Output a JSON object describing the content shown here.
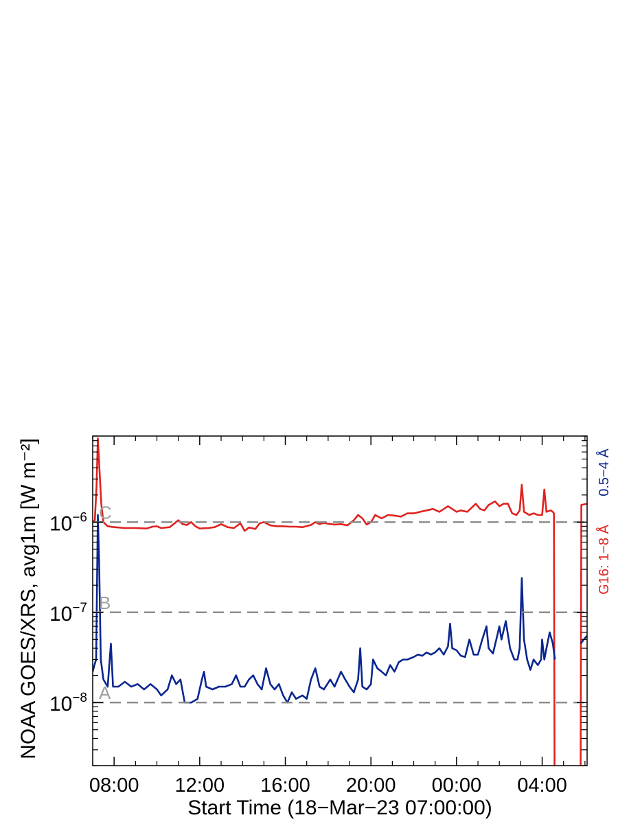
{
  "chart_data": {
    "type": "line",
    "yscale": "log",
    "xlabel": "Start Time (18−Mar−23 07:00:00)",
    "ylabel": "NOAA GOES/XRS, avg1m [W m⁻²]",
    "x_unit": "hours since start time",
    "xlim": [
      0,
      23.1
    ],
    "ylim": [
      2e-09,
      9e-06
    ],
    "x_ticks": [
      {
        "x": 1,
        "label": "08:00"
      },
      {
        "x": 5,
        "label": "12:00"
      },
      {
        "x": 9,
        "label": "16:00"
      },
      {
        "x": 13,
        "label": "20:00"
      },
      {
        "x": 17,
        "label": "00:00"
      },
      {
        "x": 21,
        "label": "04:00"
      }
    ],
    "y_ticks": [
      {
        "y": 1e-08,
        "base": "10",
        "exp": "−8"
      },
      {
        "y": 1e-07,
        "base": "10",
        "exp": "−7"
      },
      {
        "y": 1e-06,
        "base": "10",
        "exp": "−6"
      }
    ],
    "flare_levels": [
      {
        "label": "A",
        "y": 1e-08
      },
      {
        "label": "B",
        "y": 1e-07
      },
      {
        "label": "C",
        "y": 1e-06
      }
    ],
    "legend": [
      {
        "label": "0.5−4 Å",
        "color": "#0a2690"
      },
      {
        "label": "G16: 1−8 Å",
        "color": "#e0221f"
      }
    ],
    "series": [
      {
        "color": "#e0221f",
        "points": [
          [
            0.0,
            1e-06
          ],
          [
            0.1,
            1.05e-06
          ],
          [
            0.18,
            2.5e-06
          ],
          [
            0.24,
            8.5e-06
          ],
          [
            0.3,
            4.5e-06
          ],
          [
            0.4,
            1.6e-06
          ],
          [
            0.5,
            1e-06
          ],
          [
            0.7,
            9e-07
          ],
          [
            1.0,
            8.8e-07
          ],
          [
            1.5,
            8.6e-07
          ],
          [
            2.0,
            8.6e-07
          ],
          [
            2.5,
            8.5e-07
          ],
          [
            2.8,
            8.9e-07
          ],
          [
            3.0,
            9e-07
          ],
          [
            3.2,
            8.6e-07
          ],
          [
            3.6,
            8.8e-07
          ],
          [
            3.8,
            9.6e-07
          ],
          [
            4.0,
            1.05e-06
          ],
          [
            4.2,
            9.5e-07
          ],
          [
            4.4,
            9.3e-07
          ],
          [
            4.6,
            1e-06
          ],
          [
            4.8,
            9e-07
          ],
          [
            5.0,
            8.5e-07
          ],
          [
            5.4,
            8.6e-07
          ],
          [
            5.7,
            8.8e-07
          ],
          [
            6.0,
            9.5e-07
          ],
          [
            6.3,
            8.8e-07
          ],
          [
            6.6,
            8.6e-07
          ],
          [
            6.9,
            9.7e-07
          ],
          [
            7.1,
            8e-07
          ],
          [
            7.3,
            8.7e-07
          ],
          [
            7.6,
            8.4e-07
          ],
          [
            7.8,
            9.7e-07
          ],
          [
            8.0,
            1e-06
          ],
          [
            8.3,
            9.2e-07
          ],
          [
            8.6,
            9e-07
          ],
          [
            8.9,
            9e-07
          ],
          [
            9.2,
            8.9e-07
          ],
          [
            9.5,
            8.9e-07
          ],
          [
            9.8,
            8.8e-07
          ],
          [
            10.2,
            9.3e-07
          ],
          [
            10.4,
            1e-06
          ],
          [
            10.6,
            9.5e-07
          ],
          [
            10.8,
            9.8e-07
          ],
          [
            11.0,
            9.6e-07
          ],
          [
            11.3,
            9.4e-07
          ],
          [
            11.6,
            9.5e-07
          ],
          [
            11.9,
            9.2e-07
          ],
          [
            12.2,
            1.05e-06
          ],
          [
            12.4,
            1.2e-06
          ],
          [
            12.6,
            1.1e-06
          ],
          [
            12.8,
            9.4e-07
          ],
          [
            13.0,
            1e-06
          ],
          [
            13.2,
            1.2e-06
          ],
          [
            13.5,
            1.1e-06
          ],
          [
            13.8,
            1.2e-06
          ],
          [
            14.1,
            1.18e-06
          ],
          [
            14.4,
            1.15e-06
          ],
          [
            14.7,
            1.25e-06
          ],
          [
            15.0,
            1.25e-06
          ],
          [
            15.3,
            1.3e-06
          ],
          [
            15.6,
            1.35e-06
          ],
          [
            15.9,
            1.4e-06
          ],
          [
            16.2,
            1.3e-06
          ],
          [
            16.6,
            1.5e-06
          ],
          [
            16.8,
            1.4e-06
          ],
          [
            17.0,
            1.3e-06
          ],
          [
            17.2,
            1.35e-06
          ],
          [
            17.5,
            1.3e-06
          ],
          [
            17.9,
            1.6e-06
          ],
          [
            18.1,
            1.4e-06
          ],
          [
            18.3,
            1.35e-06
          ],
          [
            18.5,
            1.55e-06
          ],
          [
            18.8,
            1.7e-06
          ],
          [
            19.0,
            1.5e-06
          ],
          [
            19.2,
            1.6e-06
          ],
          [
            19.4,
            1.6e-06
          ],
          [
            19.6,
            1.25e-06
          ],
          [
            19.8,
            1.2e-06
          ],
          [
            19.95,
            1.35e-06
          ],
          [
            20.05,
            2.6e-06
          ],
          [
            20.15,
            1.3e-06
          ],
          [
            20.4,
            1.2e-06
          ],
          [
            20.6,
            1.25e-06
          ],
          [
            20.8,
            1.2e-06
          ],
          [
            21.0,
            1.2e-06
          ],
          [
            21.1,
            2.3e-06
          ],
          [
            21.2,
            1.3e-06
          ],
          [
            21.4,
            1.35e-06
          ],
          [
            21.5,
            1.3e-06
          ],
          [
            21.55,
            1.25e-06
          ],
          [
            21.58,
            2e-09
          ]
        ]
      },
      {
        "color": "#e0221f",
        "points": [
          [
            22.8,
            2e-09
          ],
          [
            22.83,
            1.55e-06
          ],
          [
            23.1,
            1.6e-06
          ]
        ]
      },
      {
        "color": "#0a2690",
        "points": [
          [
            0.0,
            2.2e-08
          ],
          [
            0.08,
            2.6e-08
          ],
          [
            0.16,
            3e-08
          ],
          [
            0.24,
            1.2e-06
          ],
          [
            0.3,
            3.5e-07
          ],
          [
            0.38,
            3e-08
          ],
          [
            0.5,
            1.8e-08
          ],
          [
            0.7,
            1.5e-08
          ],
          [
            0.85,
            4.5e-08
          ],
          [
            0.95,
            1.5e-08
          ],
          [
            1.2,
            1.5e-08
          ],
          [
            1.5,
            1.7e-08
          ],
          [
            1.8,
            1.5e-08
          ],
          [
            2.1,
            1.6e-08
          ],
          [
            2.4,
            1.4e-08
          ],
          [
            2.7,
            1.6e-08
          ],
          [
            3.0,
            1.4e-08
          ],
          [
            3.2,
            1.2e-08
          ],
          [
            3.5,
            1.4e-08
          ],
          [
            3.7,
            2e-08
          ],
          [
            3.9,
            1.6e-08
          ],
          [
            4.1,
            1.8e-08
          ],
          [
            4.3,
            1e-08
          ],
          [
            4.6,
            1e-08
          ],
          [
            4.9,
            1.1e-08
          ],
          [
            5.1,
            1.8e-08
          ],
          [
            5.2,
            2.2e-08
          ],
          [
            5.3,
            1.5e-08
          ],
          [
            5.6,
            1.4e-08
          ],
          [
            5.9,
            1.5e-08
          ],
          [
            6.2,
            1.5e-08
          ],
          [
            6.5,
            1.6e-08
          ],
          [
            6.7,
            2e-08
          ],
          [
            6.9,
            1.5e-08
          ],
          [
            7.1,
            1.5e-08
          ],
          [
            7.3,
            1.8e-08
          ],
          [
            7.5,
            2e-08
          ],
          [
            7.7,
            1.6e-08
          ],
          [
            7.9,
            1.4e-08
          ],
          [
            8.1,
            2.4e-08
          ],
          [
            8.3,
            1.6e-08
          ],
          [
            8.5,
            1.4e-08
          ],
          [
            8.7,
            1.6e-08
          ],
          [
            8.9,
            1.2e-08
          ],
          [
            9.1,
            1e-08
          ],
          [
            9.3,
            1.3e-08
          ],
          [
            9.5,
            1.1e-08
          ],
          [
            9.8,
            1.2e-08
          ],
          [
            10.0,
            1.1e-08
          ],
          [
            10.2,
            1.8e-08
          ],
          [
            10.4,
            2.4e-08
          ],
          [
            10.6,
            1.5e-08
          ],
          [
            10.8,
            1.4e-08
          ],
          [
            11.1,
            1.8e-08
          ],
          [
            11.3,
            1.5e-08
          ],
          [
            11.6,
            2.2e-08
          ],
          [
            11.8,
            1.8e-08
          ],
          [
            12.0,
            1.5e-08
          ],
          [
            12.2,
            1.3e-08
          ],
          [
            12.4,
            1.8e-08
          ],
          [
            12.5,
            4e-08
          ],
          [
            12.6,
            1.5e-08
          ],
          [
            12.8,
            1.4e-08
          ],
          [
            13.0,
            1.6e-08
          ],
          [
            13.1,
            3e-08
          ],
          [
            13.3,
            2.4e-08
          ],
          [
            13.5,
            2.2e-08
          ],
          [
            13.7,
            2e-08
          ],
          [
            13.9,
            2.6e-08
          ],
          [
            14.1,
            2.2e-08
          ],
          [
            14.3,
            2.8e-08
          ],
          [
            14.5,
            3e-08
          ],
          [
            14.7,
            3e-08
          ],
          [
            15.0,
            3.2e-08
          ],
          [
            15.2,
            3.4e-08
          ],
          [
            15.4,
            3.3e-08
          ],
          [
            15.6,
            3.6e-08
          ],
          [
            15.8,
            3.4e-08
          ],
          [
            16.0,
            3.6e-08
          ],
          [
            16.2,
            4e-08
          ],
          [
            16.4,
            3.4e-08
          ],
          [
            16.6,
            4.2e-08
          ],
          [
            16.7,
            7.5e-08
          ],
          [
            16.8,
            4e-08
          ],
          [
            17.0,
            3.8e-08
          ],
          [
            17.2,
            3.3e-08
          ],
          [
            17.4,
            3.2e-08
          ],
          [
            17.6,
            5e-08
          ],
          [
            17.8,
            3.4e-08
          ],
          [
            18.0,
            3.4e-08
          ],
          [
            18.2,
            5e-08
          ],
          [
            18.4,
            7e-08
          ],
          [
            18.5,
            4e-08
          ],
          [
            18.7,
            3.5e-08
          ],
          [
            18.9,
            5.5e-08
          ],
          [
            19.0,
            7e-08
          ],
          [
            19.1,
            5e-08
          ],
          [
            19.3,
            8e-08
          ],
          [
            19.5,
            4e-08
          ],
          [
            19.7,
            3e-08
          ],
          [
            19.85,
            3e-08
          ],
          [
            19.95,
            4e-08
          ],
          [
            20.05,
            2.4e-07
          ],
          [
            20.15,
            5e-08
          ],
          [
            20.3,
            3e-08
          ],
          [
            20.45,
            2.3e-08
          ],
          [
            20.6,
            3e-08
          ],
          [
            20.8,
            2.6e-08
          ],
          [
            20.95,
            3e-08
          ],
          [
            21.0,
            5e-08
          ],
          [
            21.1,
            3e-08
          ],
          [
            21.2,
            4e-08
          ],
          [
            21.35,
            6e-08
          ],
          [
            21.5,
            4.5e-08
          ],
          [
            21.6,
            3e-08
          ]
        ]
      },
      {
        "color": "#0a2690",
        "points": [
          [
            22.8,
            4.5e-08
          ],
          [
            23.0,
            5.2e-08
          ],
          [
            23.1,
            5.5e-08
          ]
        ]
      }
    ]
  }
}
